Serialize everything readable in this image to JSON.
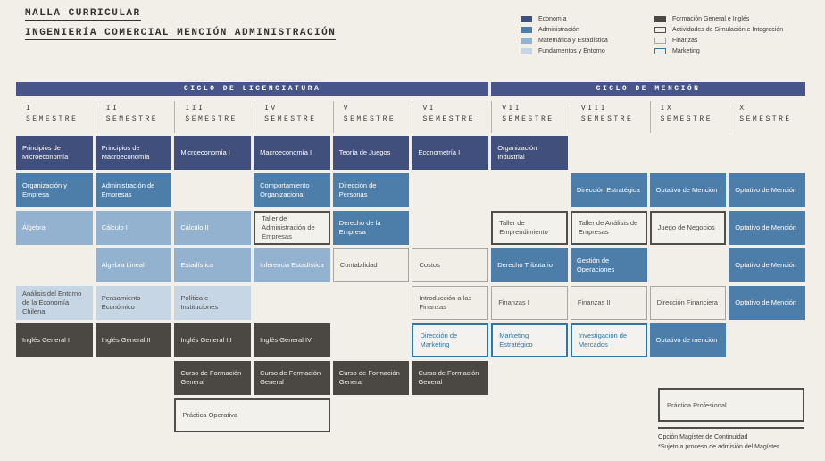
{
  "title": {
    "line1": "MALLA CURRICULAR",
    "line2": "INGENIERÍA COMERCIAL MENCIÓN ADMINISTRACIÓN"
  },
  "colors": {
    "page_bg": "#f2efe9",
    "cycle_bar": "#47558b",
    "header_divider": "#b7b4ae",
    "title_text": "#33322e",
    "note_text": "#3d3c38",
    "divider_line": "#514e49"
  },
  "categories": {
    "economia": {
      "label": "Economía",
      "bg": "#414f7d",
      "border": "#414f7d",
      "text": "#ffffff",
      "border_width": 0
    },
    "administracion": {
      "label": "Administración",
      "bg": "#4c7ea9",
      "border": "#4c7ea9",
      "text": "#ffffff",
      "border_width": 0
    },
    "matematica": {
      "label": "Matemática y Estadística",
      "bg": "#93b2cf",
      "border": "#93b2cf",
      "text": "#ffffff",
      "border_width": 0
    },
    "fundamentos": {
      "label": "Fundamentos y Entorno",
      "bg": "#c7d6e4",
      "border": "#c7d6e4",
      "text": "#4b4a45",
      "border_width": 0
    },
    "formacion": {
      "label": "Formación General e Inglés",
      "bg": "#4b4742",
      "border": "#4b4742",
      "text": "#f2efe9",
      "border_width": 0
    },
    "actividades": {
      "label": "Actividades de Simulación e Integración",
      "bg": "#f3f1ec",
      "border": "#514e49",
      "text": "#514e49",
      "border_width": 2
    },
    "finanzas": {
      "label": "Finanzas",
      "bg": "#f1eee8",
      "border": "#a9a7a1",
      "text": "#514e49",
      "border_width": 1
    },
    "marketing": {
      "label": "Marketing",
      "bg": "#f4f2ee",
      "border": "#2f76a4",
      "text": "#2f76a4",
      "border_width": 2
    }
  },
  "legend": {
    "left": [
      "economia",
      "administracion",
      "matematica",
      "fundamentos"
    ],
    "right": [
      "formacion",
      "actividades",
      "finanzas",
      "marketing"
    ]
  },
  "cycles": [
    {
      "label": "CICLO DE LICENCIATURA",
      "start": 1,
      "span": 6
    },
    {
      "label": "CICLO DE MENCIÓN",
      "start": 7,
      "span": 4
    }
  ],
  "semesters": [
    {
      "numeral": "I",
      "word": "SEMESTRE"
    },
    {
      "numeral": "II",
      "word": "SEMESTRE"
    },
    {
      "numeral": "III",
      "word": "SEMESTRE"
    },
    {
      "numeral": "IV",
      "word": "SEMESTRE"
    },
    {
      "numeral": "V",
      "word": "SEMESTRE"
    },
    {
      "numeral": "VI",
      "word": "SEMESTRE"
    },
    {
      "numeral": "VII",
      "word": "SEMESTRE"
    },
    {
      "numeral": "VIII",
      "word": "SEMESTRE"
    },
    {
      "numeral": "IX",
      "word": "SEMESTRE"
    },
    {
      "numeral": "X",
      "word": "SEMESTRE"
    }
  ],
  "courses": [
    {
      "name": "Principios de Microeconomía",
      "col": 1,
      "row": 1,
      "cat": "economia"
    },
    {
      "name": "Organización y Empresa",
      "col": 1,
      "row": 2,
      "cat": "administracion"
    },
    {
      "name": "Álgebra",
      "col": 1,
      "row": 3,
      "cat": "matematica"
    },
    {
      "name": "Análisis del Entorno de la Economía Chilena",
      "col": 1,
      "row": 5,
      "cat": "fundamentos"
    },
    {
      "name": "Inglés General I",
      "col": 1,
      "row": 6,
      "cat": "formacion"
    },
    {
      "name": "Principios de Macroeconomía",
      "col": 2,
      "row": 1,
      "cat": "economia"
    },
    {
      "name": "Administración de Empresas",
      "col": 2,
      "row": 2,
      "cat": "administracion"
    },
    {
      "name": "Cálculo I",
      "col": 2,
      "row": 3,
      "cat": "matematica"
    },
    {
      "name": "Álgebra Lineal",
      "col": 2,
      "row": 4,
      "cat": "matematica"
    },
    {
      "name": "Pensamiento Económico",
      "col": 2,
      "row": 5,
      "cat": "fundamentos"
    },
    {
      "name": "Inglés General II",
      "col": 2,
      "row": 6,
      "cat": "formacion"
    },
    {
      "name": "Microeconomía I",
      "col": 3,
      "row": 1,
      "cat": "economia"
    },
    {
      "name": "Cálculo II",
      "col": 3,
      "row": 3,
      "cat": "matematica"
    },
    {
      "name": "Estadística",
      "col": 3,
      "row": 4,
      "cat": "matematica"
    },
    {
      "name": "Política e Instituciones",
      "col": 3,
      "row": 5,
      "cat": "fundamentos"
    },
    {
      "name": "Inglés General III",
      "col": 3,
      "row": 6,
      "cat": "formacion"
    },
    {
      "name": "Curso de Formación General",
      "col": 3,
      "row": 7,
      "cat": "formacion"
    },
    {
      "name": "Práctica Operativa",
      "col": 3,
      "row": 8,
      "cat": "actividades",
      "span": 2
    },
    {
      "name": "Macroeconomía I",
      "col": 4,
      "row": 1,
      "cat": "economia"
    },
    {
      "name": "Comportamiento Organizacional",
      "col": 4,
      "row": 2,
      "cat": "administracion"
    },
    {
      "name": "Taller de Administración de Empresas",
      "col": 4,
      "row": 3,
      "cat": "actividades"
    },
    {
      "name": "Inferencia Estadística",
      "col": 4,
      "row": 4,
      "cat": "matematica"
    },
    {
      "name": "Inglés General IV",
      "col": 4,
      "row": 6,
      "cat": "formacion"
    },
    {
      "name": "Curso de Formación General",
      "col": 4,
      "row": 7,
      "cat": "formacion"
    },
    {
      "name": "Teoría de Juegos",
      "col": 5,
      "row": 1,
      "cat": "economia"
    },
    {
      "name": "Dirección de Personas",
      "col": 5,
      "row": 2,
      "cat": "administracion"
    },
    {
      "name": "Derecho de la Empresa",
      "col": 5,
      "row": 3,
      "cat": "administracion"
    },
    {
      "name": "Contabilidad",
      "col": 5,
      "row": 4,
      "cat": "finanzas"
    },
    {
      "name": "Curso de Formación General",
      "col": 5,
      "row": 7,
      "cat": "formacion"
    },
    {
      "name": "Econometría I",
      "col": 6,
      "row": 1,
      "cat": "economia"
    },
    {
      "name": "Costos",
      "col": 6,
      "row": 4,
      "cat": "finanzas"
    },
    {
      "name": "Introducción a las Finanzas",
      "col": 6,
      "row": 5,
      "cat": "finanzas"
    },
    {
      "name": "Dirección de Marketing",
      "col": 6,
      "row": 6,
      "cat": "marketing"
    },
    {
      "name": "Curso de Formación General",
      "col": 6,
      "row": 7,
      "cat": "formacion"
    },
    {
      "name": "Organización Industrial",
      "col": 7,
      "row": 1,
      "cat": "economia"
    },
    {
      "name": "Taller de Emprendimiento",
      "col": 7,
      "row": 3,
      "cat": "actividades"
    },
    {
      "name": "Derecho Tributario",
      "col": 7,
      "row": 4,
      "cat": "administracion"
    },
    {
      "name": "Finanzas I",
      "col": 7,
      "row": 5,
      "cat": "finanzas"
    },
    {
      "name": "Marketing Estratégico",
      "col": 7,
      "row": 6,
      "cat": "marketing"
    },
    {
      "name": "Dirección Estratégica",
      "col": 8,
      "row": 2,
      "cat": "administracion"
    },
    {
      "name": "Taller de Análisis de Empresas",
      "col": 8,
      "row": 3,
      "cat": "actividades"
    },
    {
      "name": "Gestión de Operaciones",
      "col": 8,
      "row": 4,
      "cat": "administracion"
    },
    {
      "name": "Finanzas II",
      "col": 8,
      "row": 5,
      "cat": "finanzas"
    },
    {
      "name": "Investigación de Mercados",
      "col": 8,
      "row": 6,
      "cat": "marketing"
    },
    {
      "name": "Optativo de Mención",
      "col": 9,
      "row": 2,
      "cat": "administracion"
    },
    {
      "name": "Juego de Negocios",
      "col": 9,
      "row": 3,
      "cat": "actividades"
    },
    {
      "name": "Dirección Financiera",
      "col": 9,
      "row": 5,
      "cat": "finanzas"
    },
    {
      "name": "Optativo de mención",
      "col": 9,
      "row": 6,
      "cat": "administracion"
    },
    {
      "name": "Optativo de Mención",
      "col": 10,
      "row": 2,
      "cat": "administracion"
    },
    {
      "name": "Optativo de Mención",
      "col": 10,
      "row": 3,
      "cat": "administracion"
    },
    {
      "name": "Optativo de Mención",
      "col": 10,
      "row": 4,
      "cat": "administracion"
    },
    {
      "name": "Optativo de Mención",
      "col": 10,
      "row": 5,
      "cat": "administracion"
    }
  ],
  "bottom_right": {
    "practica_label": "Práctica Profesional",
    "practica_category": "actividades",
    "note_line1": "Opción Magíster de Continuidad",
    "note_line2": "*Sujeto a proceso de admisión del Magíster"
  }
}
